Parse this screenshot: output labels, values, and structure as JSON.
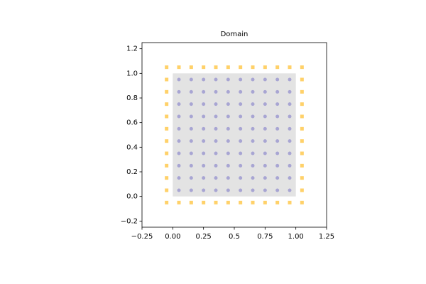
{
  "chart_data": {
    "type": "scatter",
    "title": "Domain",
    "xlim": [
      -0.25,
      1.25
    ],
    "ylim": [
      -0.25,
      1.25
    ],
    "xticks": [
      {
        "value": -0.25,
        "label": "−0.25"
      },
      {
        "value": 0,
        "label": "0.00"
      },
      0.25,
      0.5,
      0.75,
      {
        "value": 1,
        "label": "1.00"
      },
      1.25
    ],
    "yticks": [
      {
        "value": -0.2,
        "label": "−0.2"
      },
      {
        "value": 0,
        "label": "0.0"
      },
      0.2,
      0.4,
      0.6,
      0.8,
      {
        "value": 1,
        "label": "1.0"
      },
      1.2
    ],
    "grid": false,
    "domain_box": {
      "x": [
        0,
        1
      ],
      "y": [
        0,
        1
      ],
      "color": "#e3e3e3"
    },
    "series": [
      {
        "color": "#9e9ad0",
        "marker": "circle",
        "x": [
          0.05,
          0.15,
          0.25,
          0.35,
          0.45,
          0.55,
          0.65,
          0.75,
          0.85,
          0.95,
          0.05,
          0.15,
          0.25,
          0.35,
          0.45,
          0.55,
          0.65,
          0.75,
          0.85,
          0.95,
          0.05,
          0.15,
          0.25,
          0.35,
          0.45,
          0.55,
          0.65,
          0.75,
          0.85,
          0.95,
          0.05,
          0.15,
          0.25,
          0.35,
          0.45,
          0.55,
          0.65,
          0.75,
          0.85,
          0.95,
          0.05,
          0.15,
          0.25,
          0.35,
          0.45,
          0.55,
          0.65,
          0.75,
          0.85,
          0.95,
          0.05,
          0.15,
          0.25,
          0.35,
          0.45,
          0.55,
          0.65,
          0.75,
          0.85,
          0.95,
          0.05,
          0.15,
          0.25,
          0.35,
          0.45,
          0.55,
          0.65,
          0.75,
          0.85,
          0.95,
          0.05,
          0.15,
          0.25,
          0.35,
          0.45,
          0.55,
          0.65,
          0.75,
          0.85,
          0.95,
          0.05,
          0.15,
          0.25,
          0.35,
          0.45,
          0.55,
          0.65,
          0.75,
          0.85,
          0.95,
          0.05,
          0.15,
          0.25,
          0.35,
          0.45,
          0.55,
          0.65,
          0.75,
          0.85,
          0.95
        ],
        "values": [
          0.05,
          0.05,
          0.05,
          0.05,
          0.05,
          0.05,
          0.05,
          0.05,
          0.05,
          0.05,
          0.15,
          0.15,
          0.15,
          0.15,
          0.15,
          0.15,
          0.15,
          0.15,
          0.15,
          0.15,
          0.25,
          0.25,
          0.25,
          0.25,
          0.25,
          0.25,
          0.25,
          0.25,
          0.25,
          0.25,
          0.35,
          0.35,
          0.35,
          0.35,
          0.35,
          0.35,
          0.35,
          0.35,
          0.35,
          0.35,
          0.45,
          0.45,
          0.45,
          0.45,
          0.45,
          0.45,
          0.45,
          0.45,
          0.45,
          0.45,
          0.55,
          0.55,
          0.55,
          0.55,
          0.55,
          0.55,
          0.55,
          0.55,
          0.55,
          0.55,
          0.65,
          0.65,
          0.65,
          0.65,
          0.65,
          0.65,
          0.65,
          0.65,
          0.65,
          0.65,
          0.75,
          0.75,
          0.75,
          0.75,
          0.75,
          0.75,
          0.75,
          0.75,
          0.75,
          0.75,
          0.85,
          0.85,
          0.85,
          0.85,
          0.85,
          0.85,
          0.85,
          0.85,
          0.85,
          0.85,
          0.95,
          0.95,
          0.95,
          0.95,
          0.95,
          0.95,
          0.95,
          0.95,
          0.95,
          0.95
        ]
      },
      {
        "color": "#ffc94f",
        "marker": "square",
        "x": [
          -0.05,
          0.05,
          0.15,
          0.25,
          0.35,
          0.45,
          0.55,
          0.65,
          0.75,
          0.85,
          0.95,
          1.05,
          -0.05,
          0.05,
          0.15,
          0.25,
          0.35,
          0.45,
          0.55,
          0.65,
          0.75,
          0.85,
          0.95,
          1.05,
          -0.05,
          -0.05,
          -0.05,
          -0.05,
          -0.05,
          -0.05,
          -0.05,
          -0.05,
          -0.05,
          -0.05,
          1.05,
          1.05,
          1.05,
          1.05,
          1.05,
          1.05,
          1.05,
          1.05,
          1.05,
          1.05
        ],
        "values": [
          -0.05,
          -0.05,
          -0.05,
          -0.05,
          -0.05,
          -0.05,
          -0.05,
          -0.05,
          -0.05,
          -0.05,
          -0.05,
          -0.05,
          1.05,
          1.05,
          1.05,
          1.05,
          1.05,
          1.05,
          1.05,
          1.05,
          1.05,
          1.05,
          1.05,
          1.05,
          0.05,
          0.15,
          0.25,
          0.35,
          0.45,
          0.55,
          0.65,
          0.75,
          0.85,
          0.95,
          0.05,
          0.15,
          0.25,
          0.35,
          0.45,
          0.55,
          0.65,
          0.75,
          0.85,
          0.95
        ]
      }
    ]
  }
}
